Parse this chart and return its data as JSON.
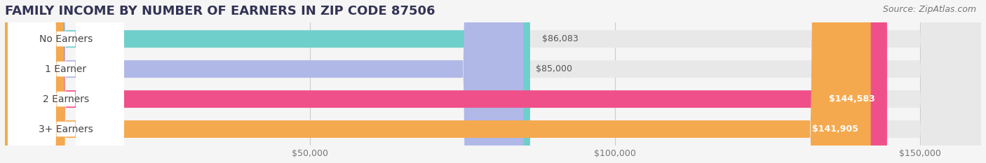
{
  "title": "FAMILY INCOME BY NUMBER OF EARNERS IN ZIP CODE 87506",
  "source": "Source: ZipAtlas.com",
  "categories": [
    "No Earners",
    "1 Earner",
    "2 Earners",
    "3+ Earners"
  ],
  "values": [
    86083,
    85000,
    144583,
    141905
  ],
  "bar_colors": [
    "#6ecfcb",
    "#b0b8e8",
    "#f0508a",
    "#f5a94e"
  ],
  "value_labels": [
    "$86,083",
    "$85,000",
    "$144,583",
    "$141,905"
  ],
  "value_inside": [
    false,
    false,
    true,
    true
  ],
  "xlim_data": [
    0,
    160000
  ],
  "xaxis_min": 0,
  "xticks": [
    50000,
    100000,
    150000
  ],
  "xtick_labels": [
    "$50,000",
    "$100,000",
    "$150,000"
  ],
  "background_color": "#f5f5f5",
  "bar_background_color": "#e8e8e8",
  "title_fontsize": 13,
  "source_fontsize": 9,
  "bar_label_fontsize": 10,
  "value_fontsize": 9,
  "bar_height": 0.58
}
